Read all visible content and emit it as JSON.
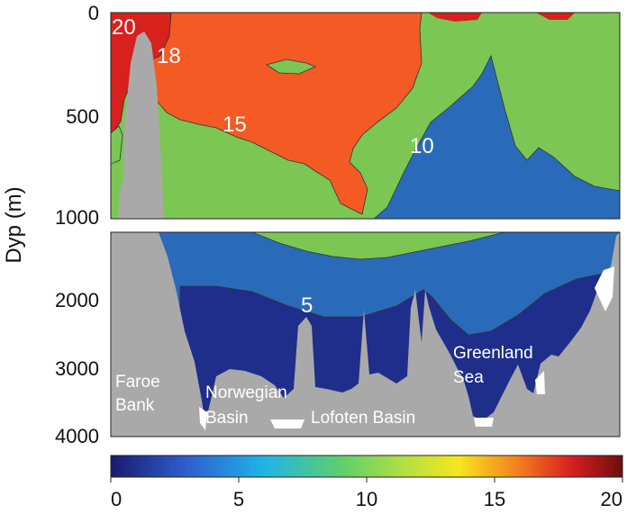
{
  "chart_data": {
    "type": "contour",
    "ylabel": "Dyp (m)",
    "y_ticks_upper": [
      "0",
      "500",
      "1000"
    ],
    "y_ticks_lower": [
      "2000",
      "3000",
      "4000"
    ],
    "colorbar": {
      "ticks": [
        "0",
        "5",
        "10",
        "15",
        "20"
      ],
      "range": [
        0,
        20
      ],
      "colors": [
        "#1a1a6e",
        "#2f5fd0",
        "#1fb4e8",
        "#5ecf6a",
        "#b7e040",
        "#f6e61e",
        "#f47a1e",
        "#d71f1f",
        "#6e0e0e"
      ]
    },
    "contour_labels": [
      "20",
      "18",
      "15",
      "10",
      "5"
    ],
    "place_labels": [
      {
        "lines": [
          "Faroe",
          "Bank"
        ]
      },
      {
        "lines": [
          "Norwegian",
          "Basin"
        ]
      },
      {
        "lines": [
          "Lofoten Basin"
        ]
      },
      {
        "lines": [
          "Greenland",
          "Sea"
        ]
      }
    ],
    "fill_colors": {
      "red": "#d8201c",
      "orange": "#f45a24",
      "green": "#7cc654",
      "blue": "#2a6bb9",
      "navy": "#1f2e8a",
      "bathymetry": "#a9a9a9"
    }
  }
}
